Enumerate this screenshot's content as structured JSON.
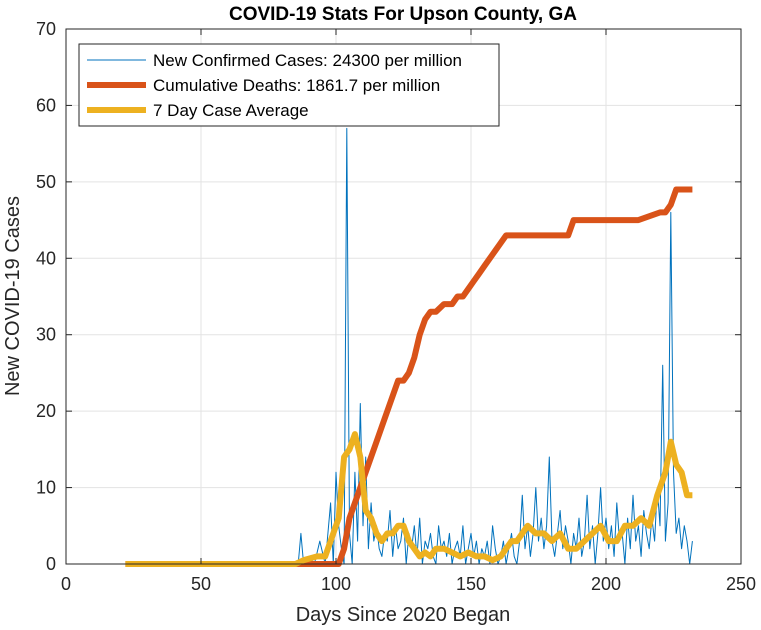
{
  "chart_data": {
    "type": "line",
    "title": "COVID-19 Stats For Upson County, GA",
    "xlabel": "Days Since 2020 Began",
    "ylabel": "New COVID-19 Cases",
    "xlim": [
      0,
      250
    ],
    "ylim": [
      0,
      70
    ],
    "xticks": [
      "0",
      "50",
      "100",
      "150",
      "200",
      "250"
    ],
    "yticks": [
      "0",
      "10",
      "20",
      "30",
      "40",
      "50",
      "60",
      "70"
    ],
    "grid": true,
    "legend_position": "top-left",
    "series": [
      {
        "name": "New Confirmed Cases: 24300 per million",
        "color": "#0072BD",
        "x": [
          22,
          40,
          60,
          80,
          86,
          87,
          88,
          90,
          92,
          94,
          96,
          98,
          99,
          100,
          101,
          102,
          103,
          104,
          105,
          106,
          107,
          108,
          109,
          110,
          111,
          112,
          113,
          114,
          115,
          116,
          117,
          118,
          119,
          120,
          121,
          122,
          123,
          124,
          125,
          126,
          127,
          128,
          129,
          130,
          131,
          132,
          133,
          134,
          135,
          136,
          137,
          138,
          139,
          140,
          141,
          142,
          143,
          144,
          145,
          146,
          147,
          148,
          149,
          150,
          151,
          152,
          153,
          154,
          155,
          156,
          157,
          158,
          159,
          160,
          161,
          162,
          163,
          164,
          165,
          166,
          167,
          168,
          169,
          170,
          171,
          172,
          173,
          174,
          175,
          176,
          177,
          178,
          179,
          180,
          181,
          182,
          183,
          184,
          185,
          186,
          187,
          188,
          189,
          190,
          191,
          192,
          193,
          194,
          195,
          196,
          197,
          198,
          199,
          200,
          201,
          202,
          203,
          204,
          205,
          206,
          207,
          208,
          209,
          210,
          211,
          212,
          213,
          214,
          215,
          216,
          217,
          218,
          219,
          220,
          221,
          222,
          223,
          224,
          225,
          226,
          227,
          228,
          229,
          230,
          231,
          232
        ],
        "y": [
          0,
          0,
          0,
          0,
          0,
          4,
          0,
          1,
          0,
          3,
          0,
          8,
          0,
          12,
          5,
          2,
          0,
          57,
          4,
          0,
          12,
          3,
          21,
          5,
          14,
          2,
          8,
          3,
          5,
          2,
          1,
          4,
          3,
          7,
          1,
          5,
          2,
          3,
          6,
          0,
          4,
          2,
          5,
          1,
          6,
          0,
          3,
          2,
          4,
          1,
          0,
          5,
          2,
          3,
          1,
          4,
          0,
          2,
          3,
          1,
          5,
          0,
          2,
          4,
          1,
          3,
          0,
          2,
          1,
          3,
          0,
          5,
          2,
          0,
          1,
          3,
          0,
          2,
          4,
          1,
          0,
          3,
          9,
          2,
          5,
          1,
          4,
          10,
          3,
          6,
          2,
          5,
          14,
          3,
          1,
          4,
          7,
          2,
          5,
          3,
          0,
          4,
          2,
          6,
          1,
          3,
          9,
          2,
          5,
          0,
          4,
          10,
          3,
          6,
          2,
          5,
          1,
          8,
          3,
          4,
          0,
          6,
          2,
          9,
          3,
          5,
          1,
          7,
          4,
          2,
          6,
          3,
          10,
          5,
          26,
          3,
          8,
          46,
          12,
          4,
          6,
          2,
          5,
          3,
          0,
          3
        ]
      },
      {
        "name": "Cumulative Deaths: 1861.7 per million",
        "color": "#D95319",
        "x": [
          22,
          101,
          103,
          105,
          107,
          109,
          111,
          113,
          115,
          117,
          119,
          121,
          123,
          125,
          127,
          129,
          131,
          133,
          135,
          137,
          140,
          143,
          145,
          147,
          149,
          151,
          153,
          155,
          157,
          159,
          161,
          163,
          165,
          167,
          169,
          171,
          180,
          186,
          188,
          210,
          212,
          220,
          222,
          224,
          226,
          228,
          232
        ],
        "y": [
          0,
          0,
          2,
          6,
          8,
          10,
          12,
          14,
          16,
          18,
          20,
          22,
          24,
          24,
          25,
          27,
          30,
          32,
          33,
          33,
          34,
          34,
          35,
          35,
          36,
          37,
          38,
          39,
          40,
          41,
          42,
          43,
          43,
          43,
          43,
          43,
          43,
          43,
          45,
          45,
          45,
          46,
          46,
          47,
          49,
          49,
          49
        ]
      },
      {
        "name": "7 Day Case Average",
        "color": "#EDB120",
        "x": [
          22,
          50,
          85,
          88,
          93,
          96,
          99,
          101,
          103,
          105,
          107,
          109,
          111,
          113,
          115,
          117,
          119,
          121,
          123,
          125,
          127,
          129,
          131,
          133,
          135,
          137,
          140,
          143,
          146,
          149,
          152,
          155,
          158,
          161,
          163,
          165,
          167,
          169,
          171,
          174,
          177,
          180,
          183,
          186,
          189,
          192,
          195,
          198,
          201,
          204,
          207,
          210,
          213,
          216,
          219,
          222,
          224,
          226,
          228,
          230,
          232
        ],
        "y": [
          0,
          0,
          0,
          0.5,
          1,
          1,
          4,
          6,
          14,
          15,
          17,
          14,
          7,
          6,
          4,
          3,
          4,
          4,
          5,
          5,
          3,
          2,
          1,
          1.5,
          1,
          2,
          2,
          1.5,
          1,
          1.5,
          1,
          1,
          0.5,
          1,
          2,
          3,
          3,
          4,
          5,
          4,
          4,
          3,
          4,
          2,
          2,
          3,
          4,
          5,
          3,
          3,
          5,
          5,
          6,
          5,
          9,
          12,
          16,
          13,
          12,
          9,
          9
        ]
      }
    ]
  }
}
